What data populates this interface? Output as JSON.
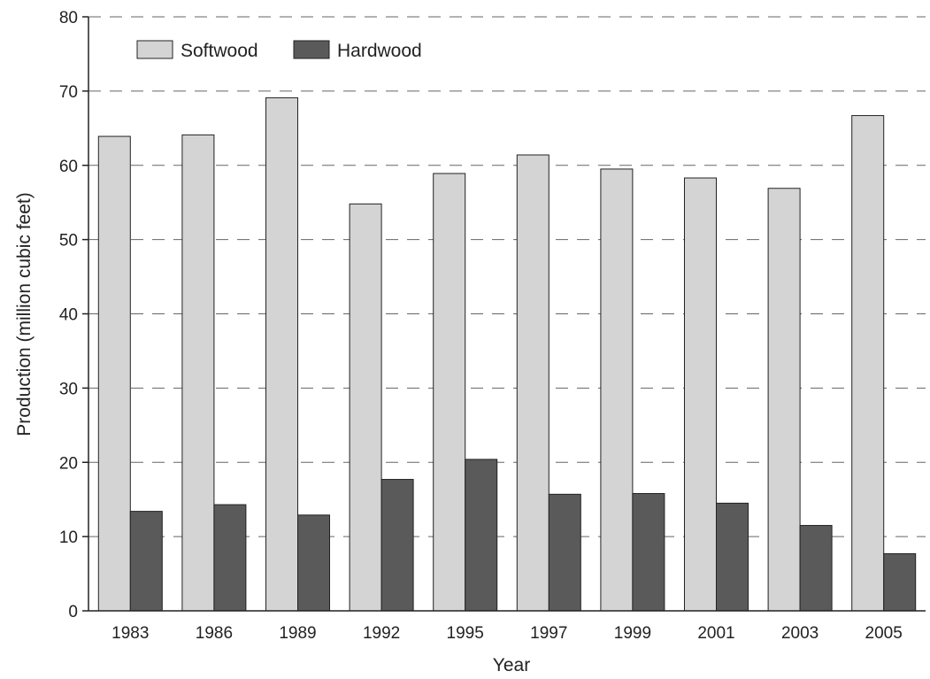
{
  "chart_data": {
    "type": "bar",
    "title": "",
    "xlabel": "Year",
    "ylabel": "Production (million cubic feet)",
    "ylim": [
      0,
      80
    ],
    "yticks": [
      0,
      10,
      20,
      30,
      40,
      50,
      60,
      70,
      80
    ],
    "grid": true,
    "legend_position": "top-left",
    "categories": [
      "1983",
      "1986",
      "1989",
      "1992",
      "1995",
      "1997",
      "1999",
      "2001",
      "2003",
      "2005"
    ],
    "series": [
      {
        "name": "Softwood",
        "color": "#d4d4d4",
        "values": [
          63.9,
          64.1,
          69.1,
          54.8,
          58.9,
          61.4,
          59.5,
          58.3,
          56.9,
          66.7
        ]
      },
      {
        "name": "Hardwood",
        "color": "#5a5a5a",
        "values": [
          13.4,
          14.3,
          12.9,
          17.7,
          20.4,
          15.7,
          15.8,
          14.5,
          11.5,
          7.7
        ]
      }
    ]
  }
}
